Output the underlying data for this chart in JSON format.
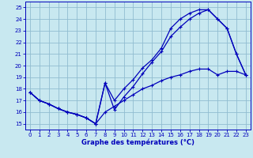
{
  "bg_color": "#c8e8f0",
  "grid_color": "#90bcd0",
  "line_color": "#0000bb",
  "xlabel": "Graphe des températures (°C)",
  "xlim": [
    -0.5,
    23.5
  ],
  "ylim": [
    14.5,
    25.5
  ],
  "xticks": [
    0,
    1,
    2,
    3,
    4,
    5,
    6,
    7,
    8,
    9,
    10,
    11,
    12,
    13,
    14,
    15,
    16,
    17,
    18,
    19,
    20,
    21,
    22,
    23
  ],
  "yticks": [
    15,
    16,
    17,
    18,
    19,
    20,
    21,
    22,
    23,
    24,
    25
  ],
  "line1_x": [
    0,
    1,
    2,
    3,
    4,
    5,
    6,
    7,
    8,
    9,
    10,
    11,
    12,
    13,
    14,
    15,
    16,
    17,
    18,
    19,
    20,
    21,
    22,
    23
  ],
  "line1_y": [
    17.7,
    17.0,
    16.7,
    16.3,
    16.0,
    15.8,
    15.5,
    15.0,
    18.5,
    16.2,
    17.3,
    18.2,
    19.3,
    20.3,
    21.2,
    22.5,
    23.3,
    24.0,
    24.5,
    24.8,
    24.0,
    23.2,
    21.0,
    19.2
  ],
  "line2_x": [
    0,
    1,
    2,
    3,
    4,
    5,
    6,
    7,
    8,
    9,
    10,
    11,
    12,
    13,
    14,
    15,
    16,
    17,
    18,
    19,
    20,
    21,
    22,
    23
  ],
  "line2_y": [
    17.7,
    17.0,
    16.7,
    16.3,
    16.0,
    15.8,
    15.5,
    15.0,
    18.5,
    17.0,
    18.0,
    18.8,
    19.8,
    20.5,
    21.5,
    23.2,
    24.0,
    24.5,
    24.8,
    24.8,
    24.0,
    23.2,
    21.0,
    19.2
  ],
  "line3_x": [
    0,
    1,
    2,
    3,
    4,
    5,
    6,
    7,
    8,
    9,
    10,
    11,
    12,
    13,
    14,
    15,
    16,
    17,
    18,
    19,
    20,
    21,
    22,
    23
  ],
  "line3_y": [
    17.7,
    17.0,
    16.7,
    16.3,
    16.0,
    15.8,
    15.5,
    15.0,
    16.0,
    16.5,
    17.0,
    17.5,
    18.0,
    18.3,
    18.7,
    19.0,
    19.2,
    19.5,
    19.7,
    19.7,
    19.2,
    19.5,
    19.5,
    19.2
  ]
}
